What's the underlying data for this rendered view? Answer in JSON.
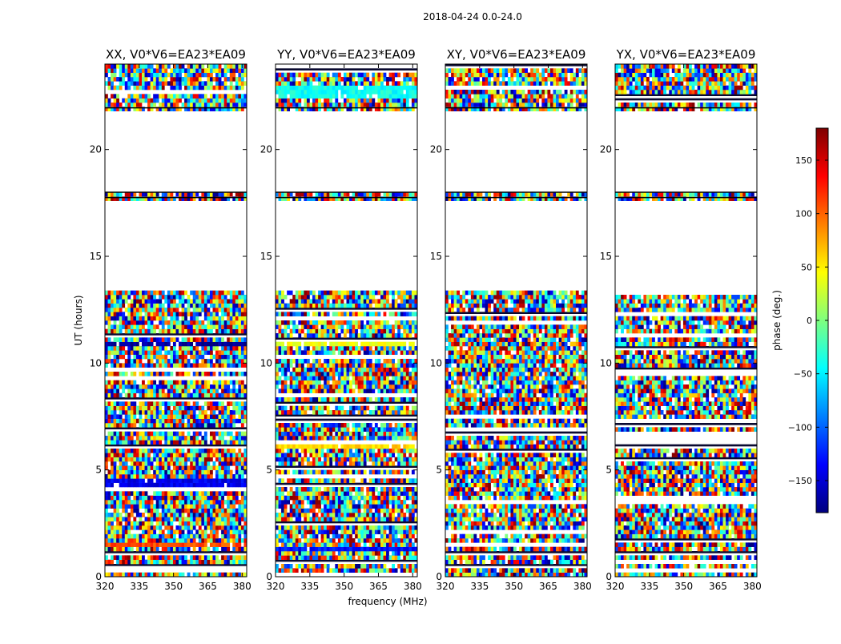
{
  "suptitle": "2018-04-24 0.0-24.0",
  "chart_data": {
    "type": "heatmap",
    "panels": [
      {
        "title": "XX, V0*V6=EA23*EA09",
        "pol": "XX"
      },
      {
        "title": "YY, V0*V6=EA23*EA09",
        "pol": "YY"
      },
      {
        "title": "XY, V0*V6=EA23*EA09",
        "pol": "XY"
      },
      {
        "title": "YX, V0*V6=EA23*EA09",
        "pol": "YX"
      }
    ],
    "xlabel": "frequency (MHz)",
    "ylabel": "UT (hours)",
    "xlim": [
      320,
      382
    ],
    "ylim": [
      0,
      24
    ],
    "xticks": [
      320,
      335,
      350,
      365,
      380
    ],
    "yticks": [
      0,
      5,
      10,
      15,
      20
    ],
    "colorbar": {
      "label": "phase (deg.)",
      "range": [
        -180,
        180
      ],
      "ticks": [
        -150,
        -100,
        -50,
        0,
        50,
        100,
        150
      ],
      "tick_labels": [
        "−150",
        "−100",
        "−50",
        "0",
        "50",
        "100",
        "150"
      ],
      "colormap": [
        "#00007f",
        "#0000ff",
        "#007fff",
        "#00ffff",
        "#7fff7f",
        "#ffff00",
        "#ff7f00",
        "#ff0000",
        "#7f0000"
      ]
    },
    "flagged_ut_ranges": [
      [
        13.5,
        17.7
      ],
      [
        18.1,
        21.9
      ]
    ],
    "horizontal_lines_ut": [
      18.0,
      17.75,
      21.95
    ]
  }
}
